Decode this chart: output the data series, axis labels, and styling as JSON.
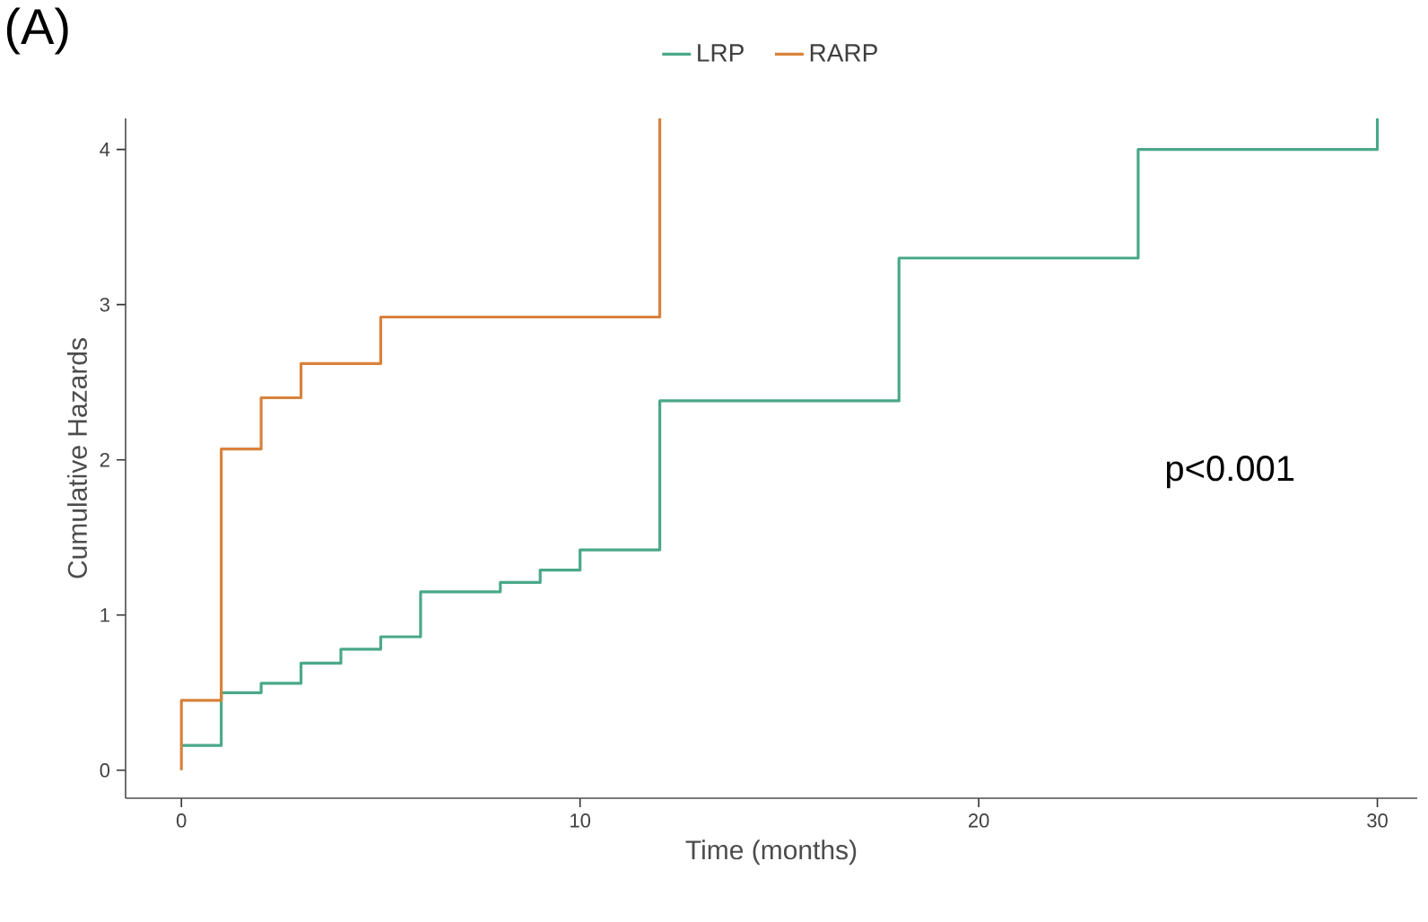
{
  "chart_data": {
    "type": "step",
    "title": "(A)",
    "xlabel": "Time (months)",
    "ylabel": "Cumulative Hazards",
    "xlim": [
      -1.4,
      31
    ],
    "ylim": [
      -0.18,
      4.2
    ],
    "xticks": [
      0,
      10,
      20,
      30
    ],
    "yticks": [
      0,
      1,
      2,
      3,
      4
    ],
    "legend": "top",
    "marker": "none",
    "line_style": "solid",
    "annotations": [
      "p<0.001"
    ],
    "series": [
      {
        "name": "LRP",
        "color": "#4aa88a",
        "x": [
          0,
          1,
          2,
          3,
          4,
          5,
          6,
          8,
          9,
          10,
          12,
          18,
          24,
          30
        ],
        "values": [
          0.16,
          0.5,
          0.56,
          0.69,
          0.78,
          0.86,
          1.15,
          1.21,
          1.29,
          1.42,
          2.38,
          3.3,
          4.0,
          4.2
        ]
      },
      {
        "name": "RARP",
        "color": "#d9823b",
        "x": [
          0,
          0,
          1,
          2,
          3,
          5,
          12
        ],
        "values": [
          0,
          0.45,
          2.07,
          2.4,
          2.62,
          2.92,
          4.2
        ]
      }
    ]
  }
}
